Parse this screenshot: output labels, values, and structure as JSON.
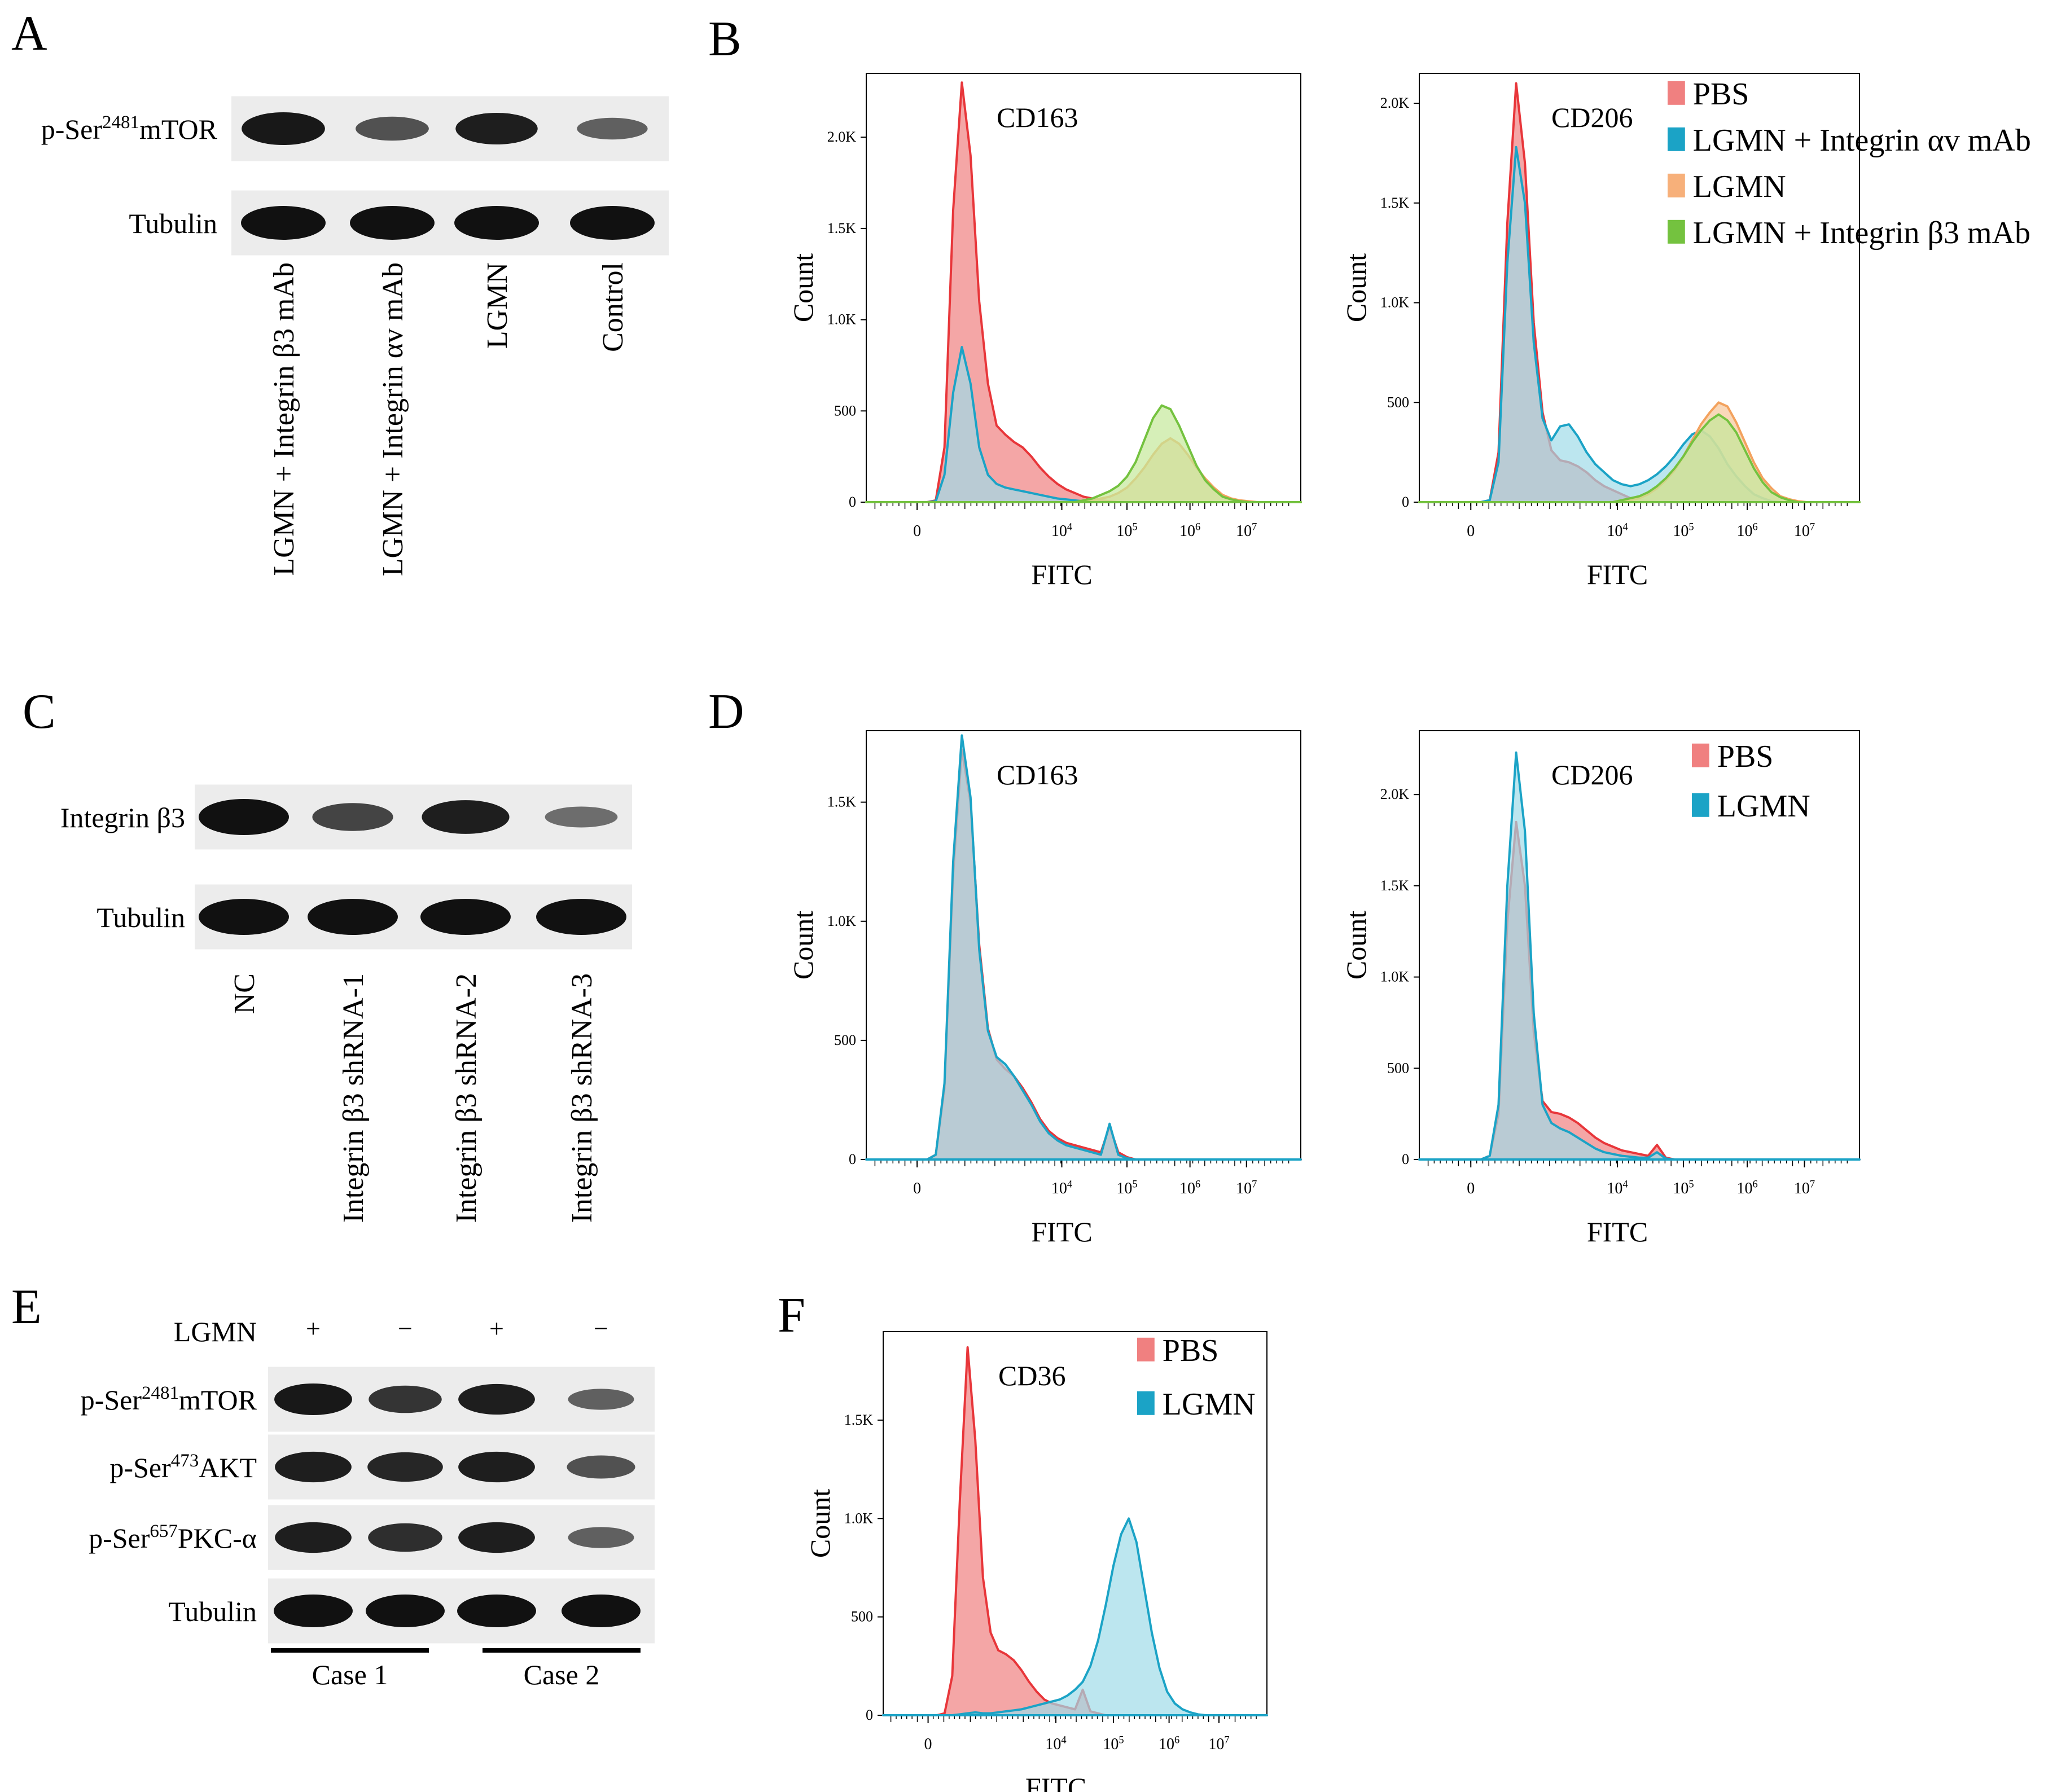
{
  "panel_letters": [
    "A",
    "B",
    "C",
    "D",
    "E",
    "F"
  ],
  "blots": {
    "A": {
      "rows": [
        "p-Ser^2481mTOR",
        "Tubulin"
      ],
      "lanes": [
        "LGMN + Integrin β3 mAb",
        "LGMN + Integrin αv mAb",
        "LGMN",
        "Control"
      ],
      "intensity": [
        [
          0.95,
          0.55,
          0.9,
          0.45
        ],
        [
          1,
          1,
          1,
          1
        ]
      ]
    },
    "C": {
      "rows": [
        "Integrin β3",
        "Tubulin"
      ],
      "lanes": [
        "NC",
        "Integrin β3 shRNA-1",
        "Integrin β3 shRNA-2",
        "Integrin β3 shRNA-3"
      ],
      "intensity": [
        [
          1,
          0.65,
          0.9,
          0.35
        ],
        [
          1,
          1,
          1,
          1
        ]
      ]
    },
    "E": {
      "treatment_label": "LGMN",
      "treatment_signs": [
        "+",
        "−",
        "+",
        "−"
      ],
      "rows": [
        "p-Ser^2481mTOR",
        "p-Ser^473AKT",
        "p-Ser^657PKC-α",
        "Tubulin"
      ],
      "intensity": [
        [
          0.95,
          0.75,
          0.9,
          0.45
        ],
        [
          0.9,
          0.85,
          0.9,
          0.55
        ],
        [
          0.9,
          0.8,
          0.9,
          0.45
        ],
        [
          1,
          1,
          1,
          1
        ]
      ],
      "groups": [
        "Case 1",
        "Case 2"
      ]
    }
  },
  "legends": {
    "B": [
      {
        "label": "PBS",
        "color": "#f08080"
      },
      {
        "label": "LGMN + Integrin αv mAb",
        "color": "#1ba3c6"
      },
      {
        "label": "LGMN",
        "color": "#f7b07a"
      },
      {
        "label": "LGMN + Integrin β3 mAb",
        "color": "#74c23f"
      }
    ],
    "D": [
      {
        "label": "PBS",
        "color": "#f08080"
      },
      {
        "label": "LGMN",
        "color": "#1ba3c6"
      }
    ],
    "F": [
      {
        "label": "PBS",
        "color": "#f08080"
      },
      {
        "label": "LGMN",
        "color": "#1ba3c6"
      }
    ]
  },
  "chart_data": [
    {
      "id": "B1",
      "type": "area",
      "title": "CD163",
      "xlabel": "FITC",
      "ylabel": "Count",
      "x_tick_labels": [
        "0",
        "10^4",
        "10^5",
        "10^6",
        "10^7"
      ],
      "y_ticks": [
        0,
        500,
        1000,
        1500,
        2000
      ],
      "y_tick_labels": [
        "0",
        "500",
        "1.0K",
        "1.5K",
        "2.0K"
      ],
      "ylim": [
        0,
        2350
      ],
      "series": [
        {
          "name": "PBS",
          "values": [
            0,
            0,
            0,
            0,
            0,
            0,
            0,
            0,
            10,
            300,
            1600,
            2300,
            1900,
            1100,
            650,
            420,
            370,
            330,
            300,
            250,
            190,
            140,
            100,
            70,
            50,
            30,
            20,
            10,
            5,
            0,
            0,
            0,
            0,
            0,
            0,
            0,
            0,
            0,
            0,
            0,
            0,
            0,
            0,
            0,
            0,
            0,
            0,
            0,
            0,
            0,
            0
          ]
        },
        {
          "name": "LGMN + Integrin αv mAb",
          "values": [
            0,
            0,
            0,
            0,
            0,
            0,
            0,
            0,
            5,
            150,
            600,
            850,
            650,
            300,
            150,
            100,
            80,
            70,
            60,
            50,
            40,
            30,
            20,
            15,
            10,
            5,
            0,
            0,
            0,
            0,
            0,
            0,
            0,
            0,
            0,
            0,
            0,
            0,
            0,
            0,
            0,
            0,
            0,
            0,
            0,
            0,
            0,
            0,
            0,
            0,
            0
          ]
        },
        {
          "name": "LGMN",
          "values": [
            0,
            0,
            0,
            0,
            0,
            0,
            0,
            0,
            0,
            0,
            0,
            0,
            0,
            0,
            0,
            0,
            0,
            0,
            0,
            0,
            0,
            0,
            0,
            0,
            0,
            0,
            10,
            20,
            30,
            50,
            80,
            130,
            190,
            260,
            320,
            350,
            320,
            260,
            190,
            130,
            80,
            40,
            20,
            10,
            5,
            0,
            0,
            0,
            0,
            0,
            0
          ]
        },
        {
          "name": "LGMN + Integrin β3 mAb",
          "values": [
            0,
            0,
            0,
            0,
            0,
            0,
            0,
            0,
            0,
            0,
            0,
            0,
            0,
            0,
            0,
            0,
            0,
            0,
            0,
            0,
            0,
            0,
            0,
            0,
            0,
            10,
            20,
            40,
            60,
            90,
            140,
            220,
            340,
            460,
            530,
            510,
            420,
            310,
            200,
            120,
            70,
            30,
            15,
            5,
            0,
            0,
            0,
            0,
            0,
            0,
            0
          ]
        }
      ]
    },
    {
      "id": "B2",
      "type": "area",
      "title": "CD206",
      "xlabel": "FITC",
      "ylabel": "Count",
      "x_tick_labels": [
        "0",
        "10^4",
        "10^5",
        "10^6",
        "10^7"
      ],
      "y_ticks": [
        0,
        500,
        1000,
        1500,
        2000
      ],
      "y_tick_labels": [
        "0",
        "500",
        "1.0K",
        "1.5K",
        "2.0K"
      ],
      "ylim": [
        0,
        2150
      ],
      "series": [
        {
          "name": "PBS",
          "values": [
            0,
            0,
            0,
            0,
            0,
            0,
            0,
            0,
            10,
            250,
            1400,
            2100,
            1700,
            900,
            450,
            260,
            210,
            200,
            180,
            150,
            110,
            80,
            60,
            40,
            20,
            10,
            5,
            0,
            0,
            0,
            0,
            0,
            0,
            0,
            0,
            0,
            0,
            0,
            0,
            0,
            0,
            0,
            0,
            0,
            0,
            0,
            0,
            0,
            0,
            0,
            0
          ]
        },
        {
          "name": "LGMN + Integrin αv mAb",
          "values": [
            0,
            0,
            0,
            0,
            0,
            0,
            0,
            0,
            10,
            200,
            1200,
            1780,
            1500,
            800,
            420,
            310,
            380,
            390,
            330,
            250,
            190,
            150,
            110,
            90,
            80,
            90,
            110,
            140,
            180,
            230,
            290,
            340,
            360,
            330,
            270,
            190,
            130,
            80,
            40,
            20,
            5,
            0,
            0,
            0,
            0,
            0,
            0,
            0,
            0,
            0,
            0
          ]
        },
        {
          "name": "LGMN",
          "values": [
            0,
            0,
            0,
            0,
            0,
            0,
            0,
            0,
            0,
            0,
            0,
            0,
            0,
            0,
            0,
            0,
            0,
            0,
            0,
            0,
            0,
            0,
            0,
            0,
            10,
            20,
            40,
            70,
            110,
            160,
            230,
            310,
            390,
            450,
            500,
            480,
            400,
            300,
            200,
            120,
            70,
            30,
            15,
            5,
            0,
            0,
            0,
            0,
            0,
            0,
            0
          ]
        },
        {
          "name": "LGMN + Integrin β3 mAb",
          "values": [
            0,
            0,
            0,
            0,
            0,
            0,
            0,
            0,
            0,
            0,
            0,
            0,
            0,
            0,
            0,
            0,
            0,
            0,
            0,
            0,
            0,
            0,
            0,
            10,
            20,
            30,
            50,
            80,
            120,
            170,
            230,
            300,
            360,
            410,
            440,
            410,
            350,
            260,
            170,
            100,
            50,
            25,
            10,
            0,
            0,
            0,
            0,
            0,
            0,
            0,
            0
          ]
        }
      ]
    },
    {
      "id": "D1",
      "type": "area",
      "title": "CD163",
      "xlabel": "FITC",
      "ylabel": "Count",
      "x_tick_labels": [
        "0",
        "10^4",
        "10^5",
        "10^6",
        "10^7"
      ],
      "y_ticks": [
        0,
        500,
        1000,
        1500
      ],
      "y_tick_labels": [
        "0",
        "500",
        "1.0K",
        "1.5K"
      ],
      "ylim": [
        0,
        1800
      ],
      "series": [
        {
          "name": "PBS",
          "values": [
            0,
            0,
            0,
            0,
            0,
            0,
            0,
            0,
            20,
            300,
            1200,
            1720,
            1500,
            900,
            550,
            420,
            380,
            350,
            300,
            240,
            170,
            120,
            90,
            70,
            60,
            50,
            40,
            30,
            140,
            30,
            10,
            0,
            0,
            0,
            0,
            0,
            0,
            0,
            0,
            0,
            0,
            0,
            0,
            0,
            0,
            0,
            0,
            0,
            0,
            0,
            0
          ]
        },
        {
          "name": "LGMN",
          "values": [
            0,
            0,
            0,
            0,
            0,
            0,
            0,
            0,
            20,
            320,
            1250,
            1780,
            1520,
            880,
            540,
            430,
            400,
            350,
            290,
            230,
            160,
            110,
            80,
            60,
            50,
            40,
            30,
            20,
            150,
            20,
            5,
            0,
            0,
            0,
            0,
            0,
            0,
            0,
            0,
            0,
            0,
            0,
            0,
            0,
            0,
            0,
            0,
            0,
            0,
            0,
            0
          ]
        }
      ]
    },
    {
      "id": "D2",
      "type": "area",
      "title": "CD206",
      "xlabel": "FITC",
      "ylabel": "Count",
      "x_tick_labels": [
        "0",
        "10^4",
        "10^5",
        "10^6",
        "10^7"
      ],
      "y_ticks": [
        0,
        500,
        1000,
        1500,
        2000
      ],
      "y_tick_labels": [
        "0",
        "500",
        "1.0K",
        "1.5K",
        "2.0K"
      ],
      "ylim": [
        0,
        2350
      ],
      "series": [
        {
          "name": "PBS",
          "values": [
            0,
            0,
            0,
            0,
            0,
            0,
            0,
            0,
            20,
            250,
            1300,
            1850,
            1500,
            700,
            320,
            260,
            250,
            230,
            200,
            160,
            120,
            90,
            70,
            50,
            40,
            30,
            20,
            80,
            10,
            0,
            0,
            0,
            0,
            0,
            0,
            0,
            0,
            0,
            0,
            0,
            0,
            0,
            0,
            0,
            0,
            0,
            0,
            0,
            0,
            0,
            0
          ]
        },
        {
          "name": "LGMN",
          "values": [
            0,
            0,
            0,
            0,
            0,
            0,
            0,
            0,
            20,
            300,
            1500,
            2230,
            1800,
            800,
            300,
            200,
            170,
            150,
            120,
            90,
            60,
            40,
            30,
            20,
            15,
            10,
            10,
            40,
            5,
            0,
            0,
            0,
            0,
            0,
            0,
            0,
            0,
            0,
            0,
            0,
            0,
            0,
            0,
            0,
            0,
            0,
            0,
            0,
            0,
            0,
            0
          ]
        }
      ]
    },
    {
      "id": "F",
      "type": "area",
      "title": "CD36",
      "xlabel": "FITC",
      "ylabel": "Count",
      "x_tick_labels": [
        "0",
        "10^4",
        "10^5",
        "10^6",
        "10^7"
      ],
      "y_ticks": [
        0,
        500,
        1000,
        1500
      ],
      "y_tick_labels": [
        "0",
        "500",
        "1.0K",
        "1.5K"
      ],
      "ylim": [
        0,
        1950
      ],
      "series": [
        {
          "name": "PBS",
          "values": [
            0,
            0,
            0,
            0,
            0,
            0,
            0,
            0,
            10,
            200,
            1100,
            1870,
            1400,
            700,
            420,
            330,
            310,
            280,
            230,
            170,
            120,
            80,
            60,
            50,
            40,
            30,
            130,
            20,
            10,
            0,
            0,
            0,
            0,
            0,
            0,
            0,
            0,
            0,
            0,
            0,
            0,
            0,
            0,
            0,
            0,
            0,
            0,
            0,
            0,
            0,
            0
          ]
        },
        {
          "name": "LGMN",
          "values": [
            0,
            0,
            0,
            0,
            0,
            0,
            0,
            0,
            0,
            0,
            5,
            10,
            15,
            10,
            10,
            15,
            20,
            25,
            30,
            40,
            50,
            60,
            70,
            80,
            100,
            130,
            170,
            250,
            380,
            560,
            760,
            920,
            1000,
            880,
            650,
            420,
            240,
            120,
            60,
            30,
            15,
            5,
            0,
            0,
            0,
            0,
            0,
            0,
            0,
            0,
            0
          ]
        }
      ]
    }
  ]
}
